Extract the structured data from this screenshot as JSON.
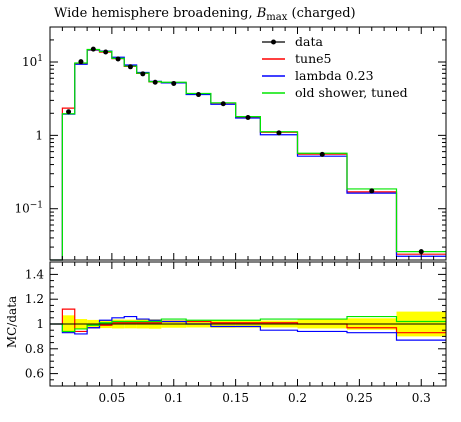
{
  "chart_data": {
    "type": "line",
    "title_main": "Wide hemisphere broadening, ",
    "title_symbol": "B",
    "title_sub": "max",
    "title_suffix": " (charged)",
    "ratio_ylabel": "MC/data",
    "upper_y": {
      "scale": "log",
      "range": [
        0.02,
        30
      ],
      "ticks": [
        {
          "value": 0.1,
          "label": "10",
          "exp": "−1"
        },
        {
          "value": 1,
          "label": "1",
          "exp": ""
        },
        {
          "value": 10,
          "label": "10",
          "exp": "1"
        }
      ]
    },
    "x": {
      "range": [
        0.0,
        0.32
      ],
      "ticks": [
        0.05,
        0.1,
        0.15,
        0.2,
        0.25,
        0.3
      ],
      "tick_labels": [
        "0.05",
        "0.1",
        "0.15",
        "0.2",
        "0.25",
        "0.3"
      ]
    },
    "ratio_y": {
      "range": [
        0.5,
        1.5
      ],
      "ticks": [
        0.6,
        0.8,
        1,
        1.2,
        1.4
      ],
      "tick_labels": [
        "0.6",
        "0.8",
        "1",
        "1.2",
        "1.4"
      ]
    },
    "bin_edges": [
      0.0,
      0.01,
      0.02,
      0.03,
      0.04,
      0.05,
      0.06,
      0.07,
      0.08,
      0.09,
      0.11,
      0.13,
      0.15,
      0.17,
      0.2,
      0.24,
      0.28,
      0.32
    ],
    "data": {
      "name": "data",
      "values": [
        0.0,
        2.1,
        10.1,
        15.0,
        13.7,
        11.0,
        8.6,
        6.9,
        5.3,
        5.1,
        3.6,
        2.7,
        1.75,
        1.08,
        0.55,
        0.175,
        0.026
      ],
      "errors": [
        0.0,
        0.15,
        0.4,
        0.5,
        0.45,
        0.4,
        0.3,
        0.25,
        0.2,
        0.15,
        0.1,
        0.08,
        0.05,
        0.03,
        0.02,
        0.008,
        0.002
      ]
    },
    "series": [
      {
        "name": "tune5",
        "color": "#ff0000",
        "values": [
          0.0,
          2.35,
          9.5,
          14.5,
          13.6,
          11.1,
          8.7,
          7.0,
          5.35,
          5.2,
          3.7,
          2.75,
          1.78,
          1.1,
          0.555,
          0.17,
          0.024
        ],
        "ratio": [
          1.0,
          1.12,
          0.94,
          0.97,
          0.99,
          1.01,
          1.01,
          1.01,
          1.01,
          1.02,
          1.02,
          1.01,
          1.01,
          1.01,
          1.0,
          0.97,
          0.93
        ]
      },
      {
        "name": "lambda 0.23",
        "color": "#0000ff",
        "values": [
          0.0,
          1.95,
          9.3,
          14.6,
          14.1,
          11.6,
          9.1,
          7.2,
          5.45,
          5.2,
          3.6,
          2.65,
          1.72,
          1.02,
          0.52,
          0.163,
          0.0225
        ],
        "ratio": [
          1.0,
          0.93,
          0.92,
          0.97,
          1.03,
          1.05,
          1.06,
          1.04,
          1.03,
          1.02,
          1.0,
          0.98,
          0.98,
          0.95,
          0.94,
          0.93,
          0.87
        ]
      },
      {
        "name": "old shower, tuned",
        "color": "#00e600",
        "values": [
          0.0,
          1.97,
          9.7,
          14.8,
          13.9,
          11.2,
          8.8,
          7.05,
          5.4,
          5.3,
          3.72,
          2.78,
          1.8,
          1.12,
          0.57,
          0.186,
          0.026
        ],
        "ratio": [
          1.0,
          0.94,
          0.96,
          0.99,
          1.01,
          1.02,
          1.02,
          1.02,
          1.02,
          1.04,
          1.03,
          1.03,
          1.03,
          1.04,
          1.04,
          1.06,
          1.02
        ]
      }
    ],
    "ratio_band": {
      "color": "#ffff00",
      "halfwidth": [
        0.0,
        0.07,
        0.04,
        0.033,
        0.033,
        0.036,
        0.035,
        0.036,
        0.038,
        0.03,
        0.028,
        0.03,
        0.029,
        0.028,
        0.036,
        0.046,
        0.1
      ]
    },
    "legend": {
      "position": "top-right",
      "entries": [
        "data",
        "tune5",
        "lambda 0.23",
        "old shower, tuned"
      ]
    },
    "grid": false
  }
}
